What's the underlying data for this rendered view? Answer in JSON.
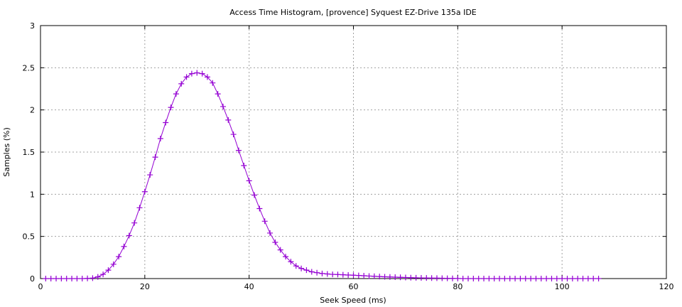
{
  "chart_data": {
    "type": "line",
    "title": "Access Time Histogram, [provence] Syquest EZ-Drive 135a IDE",
    "xlabel": "Seek Speed (ms)",
    "ylabel": "Samples (%)",
    "xlim": [
      0,
      120
    ],
    "ylim": [
      0,
      3
    ],
    "xticks": [
      0,
      20,
      40,
      60,
      80,
      100,
      120
    ],
    "yticks": [
      0,
      0.5,
      1,
      1.5,
      2,
      2.5,
      3
    ],
    "ytick_labels": [
      "0",
      "0.5",
      "1",
      "1.5",
      "2",
      "2.5",
      "3"
    ],
    "grid": true,
    "color": "#9400d3",
    "marker": "plus",
    "series": [
      {
        "name": "samples",
        "x": [
          1,
          2,
          3,
          4,
          5,
          6,
          7,
          8,
          9,
          10,
          11,
          12,
          13,
          14,
          15,
          16,
          17,
          18,
          19,
          20,
          21,
          22,
          23,
          24,
          25,
          26,
          27,
          28,
          29,
          30,
          31,
          32,
          33,
          34,
          35,
          36,
          37,
          38,
          39,
          40,
          41,
          42,
          43,
          44,
          45,
          46,
          47,
          48,
          49,
          50,
          51,
          52,
          53,
          54,
          55,
          56,
          57,
          58,
          59,
          60,
          61,
          62,
          63,
          64,
          65,
          66,
          67,
          68,
          69,
          70,
          71,
          72,
          73,
          74,
          75,
          76,
          77,
          78,
          79,
          80,
          81,
          82,
          83,
          84,
          85,
          86,
          87,
          88,
          89,
          90,
          91,
          92,
          93,
          94,
          95,
          96,
          97,
          98,
          99,
          100,
          101,
          102,
          103,
          104,
          105,
          106,
          107
        ],
        "values": [
          0,
          0,
          0,
          0,
          0,
          0,
          0,
          0,
          0.002,
          0.005,
          0.02,
          0.05,
          0.1,
          0.17,
          0.26,
          0.38,
          0.51,
          0.66,
          0.84,
          1.03,
          1.23,
          1.44,
          1.66,
          1.85,
          2.03,
          2.19,
          2.31,
          2.39,
          2.43,
          2.44,
          2.43,
          2.39,
          2.32,
          2.19,
          2.04,
          1.88,
          1.71,
          1.52,
          1.34,
          1.16,
          0.99,
          0.83,
          0.68,
          0.54,
          0.43,
          0.34,
          0.26,
          0.2,
          0.15,
          0.12,
          0.1,
          0.08,
          0.07,
          0.06,
          0.055,
          0.05,
          0.048,
          0.045,
          0.042,
          0.04,
          0.037,
          0.034,
          0.03,
          0.027,
          0.024,
          0.021,
          0.019,
          0.017,
          0.015,
          0.013,
          0.011,
          0.009,
          0.008,
          0.007,
          0.006,
          0.005,
          0.004,
          0.003,
          0.002,
          0.001,
          0,
          0,
          0,
          0,
          0,
          0,
          0,
          0,
          0,
          0,
          0,
          0,
          0,
          0,
          0,
          0,
          0,
          0,
          0,
          0,
          0,
          0,
          0,
          0,
          0,
          0,
          0
        ]
      }
    ]
  }
}
